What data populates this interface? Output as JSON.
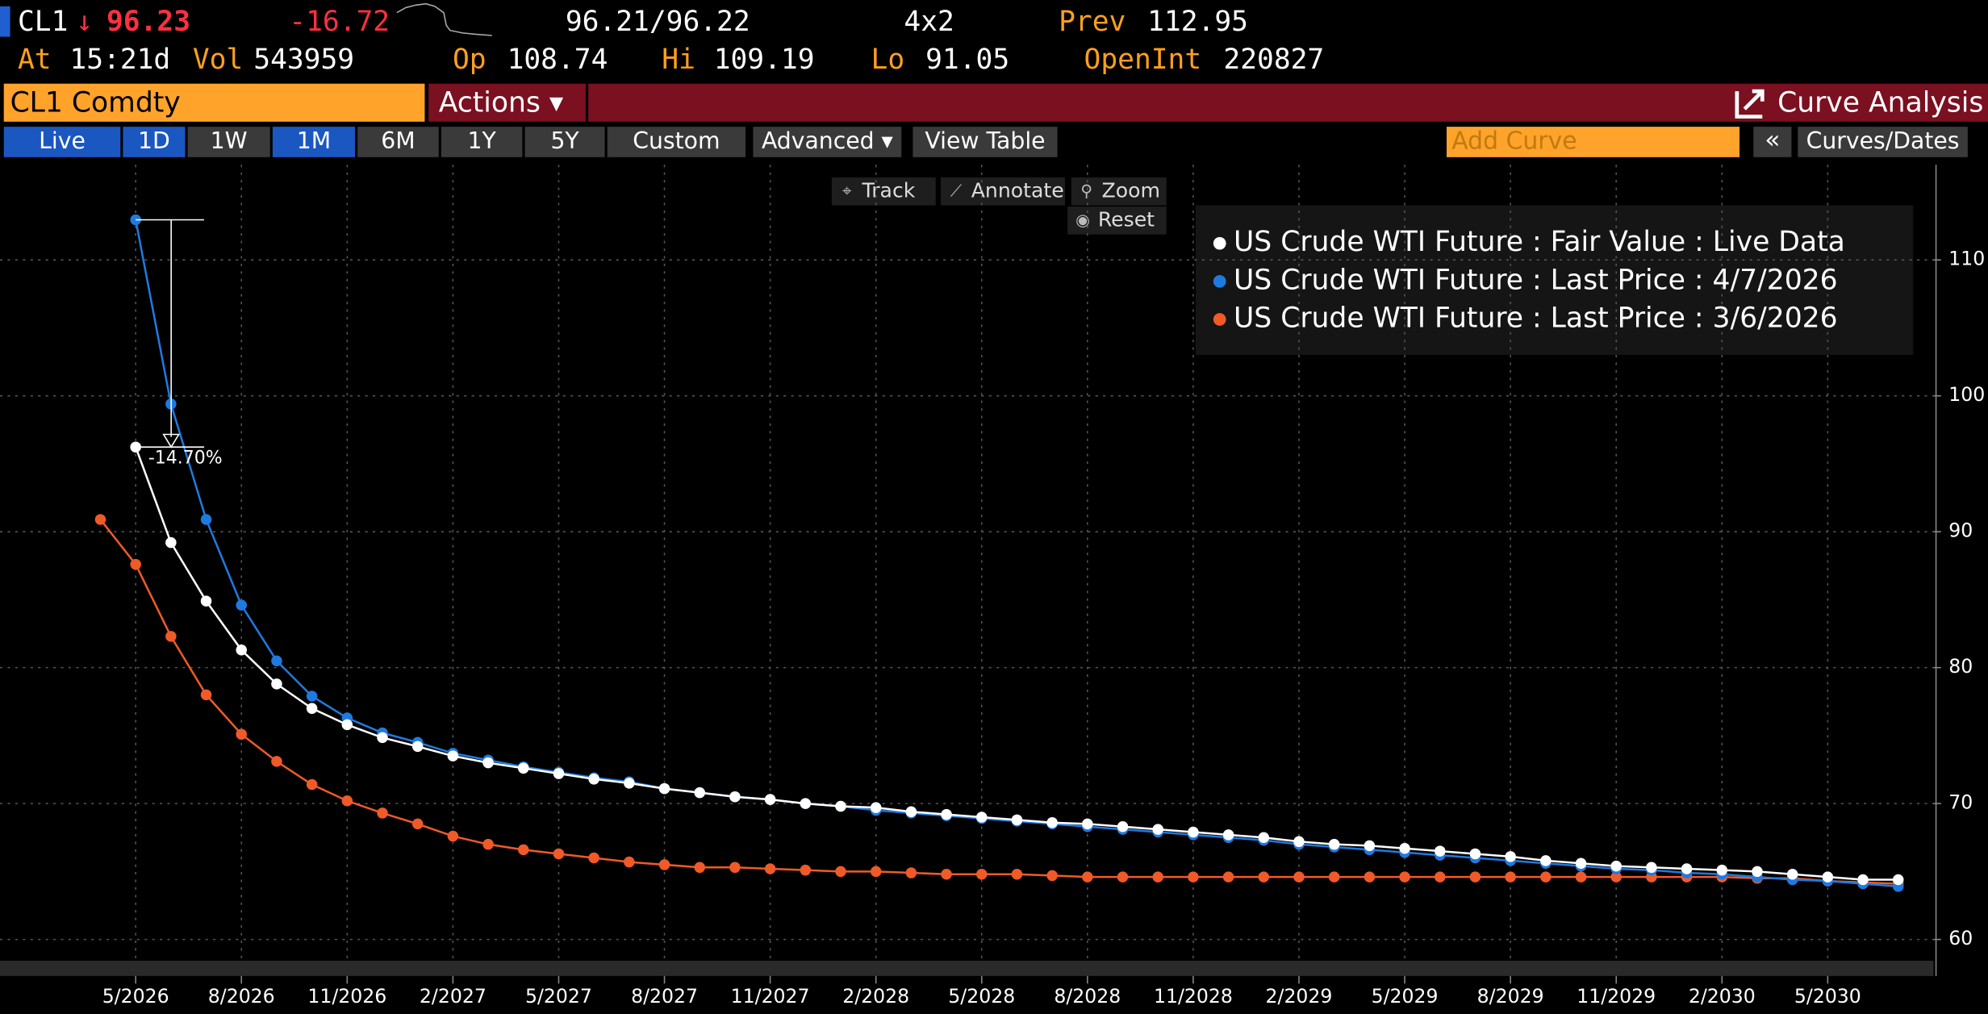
{
  "header": {
    "ticker": "CL1",
    "arrow": "↓",
    "last": "96.23",
    "change": "-16.72",
    "bid_ask": "96.21/96.22",
    "size": "4x2",
    "prev_label": "Prev",
    "prev": "112.95",
    "at_label": "At",
    "time": "15:21d",
    "vol_label": "Vol",
    "vol": "543959",
    "op_label": "Op",
    "op": "108.74",
    "hi_label": "Hi",
    "hi": "109.19",
    "lo_label": "Lo",
    "lo": "91.05",
    "oi_label": "OpenInt",
    "oi": "220827"
  },
  "toolbar": {
    "security": "CL1 Comdty",
    "actions": "Actions ▾",
    "function": "Curve Analysis",
    "buttons": [
      "Live",
      "1D",
      "1W",
      "1M",
      "6M",
      "1Y",
      "5Y",
      "Custom",
      "Advanced ▾",
      "View Table"
    ],
    "add_curve": "Add Curve",
    "collapse": "«",
    "curves_dates": "Curves/Dates"
  },
  "tools": [
    "Track",
    "Annotate",
    "Zoom",
    "Reset"
  ],
  "chart_data": {
    "type": "line",
    "annotation": "-14.70%",
    "xlim": [
      "2/2026",
      "8/2030"
    ],
    "xticks": [
      "5/2026",
      "8/2026",
      "11/2026",
      "2/2027",
      "5/2027",
      "8/2027",
      "11/2027",
      "2/2028",
      "5/2028",
      "8/2028",
      "11/2028",
      "2/2029",
      "5/2029",
      "8/2029",
      "11/2029",
      "2/2030",
      "5/2030"
    ],
    "ylim": [
      57.5,
      117
    ],
    "yticks": [
      60,
      70,
      80,
      90,
      100,
      110
    ],
    "grid": true,
    "series": [
      {
        "name": "US Crude WTI Future : Fair Value : Live Data",
        "color": "#ffffff",
        "x": [
          "5/2026",
          "6/2026",
          "7/2026",
          "8/2026",
          "9/2026",
          "10/2026",
          "11/2026",
          "12/2026",
          "1/2027",
          "2/2027",
          "3/2027",
          "4/2027",
          "5/2027",
          "6/2027",
          "7/2027",
          "8/2027",
          "9/2027",
          "10/2027",
          "11/2027",
          "12/2027",
          "1/2028",
          "2/2028",
          "3/2028",
          "4/2028",
          "5/2028",
          "6/2028",
          "7/2028",
          "8/2028",
          "9/2028",
          "10/2028",
          "11/2028",
          "12/2028",
          "1/2029",
          "2/2029",
          "3/2029",
          "4/2029",
          "5/2029",
          "6/2029",
          "7/2029",
          "8/2029",
          "9/2029",
          "10/2029",
          "11/2029",
          "12/2029",
          "1/2030",
          "2/2030",
          "3/2030",
          "4/2030",
          "5/2030",
          "6/2030",
          "7/2030"
        ],
        "values": [
          96.23,
          89.2,
          84.9,
          81.3,
          78.8,
          77.0,
          75.8,
          74.85,
          74.2,
          73.5,
          73.0,
          72.6,
          72.2,
          71.8,
          71.5,
          71.1,
          70.8,
          70.5,
          70.3,
          70.0,
          69.8,
          69.7,
          69.4,
          69.2,
          69.0,
          68.8,
          68.6,
          68.5,
          68.3,
          68.1,
          67.9,
          67.7,
          67.5,
          67.2,
          67.0,
          66.9,
          66.7,
          66.5,
          66.3,
          66.1,
          65.8,
          65.6,
          65.4,
          65.3,
          65.2,
          65.1,
          65.0,
          64.8,
          64.6,
          64.4,
          64.4
        ]
      },
      {
        "name": "US Crude WTI Future : Last Price : 4/7/2026",
        "color": "#1f7ae0",
        "x": [
          "5/2026",
          "6/2026",
          "7/2026",
          "8/2026",
          "9/2026",
          "10/2026",
          "11/2026",
          "12/2026",
          "1/2027",
          "2/2027",
          "3/2027",
          "4/2027",
          "5/2027",
          "6/2027",
          "7/2027",
          "8/2027",
          "9/2027",
          "10/2027",
          "11/2027",
          "12/2027",
          "1/2028",
          "2/2028",
          "3/2028",
          "4/2028",
          "5/2028",
          "6/2028",
          "7/2028",
          "8/2028",
          "9/2028",
          "10/2028",
          "11/2028",
          "12/2028",
          "1/2029",
          "2/2029",
          "3/2029",
          "4/2029",
          "5/2029",
          "6/2029",
          "7/2029",
          "8/2029",
          "9/2029",
          "10/2029",
          "11/2029",
          "12/2029",
          "1/2030",
          "2/2030",
          "3/2030",
          "4/2030",
          "5/2030",
          "6/2030",
          "7/2030"
        ],
        "values": [
          112.95,
          99.4,
          90.9,
          84.6,
          80.5,
          77.9,
          76.3,
          75.2,
          74.5,
          73.7,
          73.2,
          72.7,
          72.3,
          71.9,
          71.6,
          71.1,
          70.8,
          70.5,
          70.3,
          70.0,
          69.8,
          69.5,
          69.3,
          69.1,
          68.9,
          68.7,
          68.5,
          68.3,
          68.1,
          67.9,
          67.7,
          67.5,
          67.3,
          67.0,
          66.8,
          66.6,
          66.4,
          66.2,
          66.0,
          65.8,
          65.6,
          65.4,
          65.2,
          65.1,
          64.9,
          64.8,
          64.6,
          64.4,
          64.3,
          64.1,
          63.9
        ]
      },
      {
        "name": "US Crude WTI Future : Last Price : 3/6/2026",
        "color": "#f05a28",
        "x": [
          "4/2026",
          "5/2026",
          "6/2026",
          "7/2026",
          "8/2026",
          "9/2026",
          "10/2026",
          "11/2026",
          "12/2026",
          "1/2027",
          "2/2027",
          "3/2027",
          "4/2027",
          "5/2027",
          "6/2027",
          "7/2027",
          "8/2027",
          "9/2027",
          "10/2027",
          "11/2027",
          "12/2027",
          "1/2028",
          "2/2028",
          "3/2028",
          "4/2028",
          "5/2028",
          "6/2028",
          "7/2028",
          "8/2028",
          "9/2028",
          "10/2028",
          "11/2028",
          "12/2028",
          "1/2029",
          "2/2029",
          "3/2029",
          "4/2029",
          "5/2029",
          "6/2029",
          "7/2029",
          "8/2029",
          "9/2029",
          "10/2029",
          "11/2029",
          "12/2029",
          "1/2030",
          "2/2030",
          "3/2030",
          "4/2030",
          "5/2030",
          "6/2030",
          "7/2030"
        ],
        "values": [
          90.9,
          87.6,
          82.3,
          78.0,
          75.1,
          73.1,
          71.4,
          70.2,
          69.3,
          68.5,
          67.6,
          67.0,
          66.6,
          66.3,
          66.0,
          65.7,
          65.5,
          65.3,
          65.3,
          65.2,
          65.1,
          65.0,
          65.0,
          64.9,
          64.8,
          64.8,
          64.8,
          64.7,
          64.6,
          64.6,
          64.6,
          64.6,
          64.6,
          64.6,
          64.6,
          64.6,
          64.6,
          64.6,
          64.6,
          64.6,
          64.6,
          64.6,
          64.6,
          64.6,
          64.6,
          64.6,
          64.6,
          64.5,
          64.5,
          64.3,
          64.2,
          64.1
        ]
      }
    ]
  }
}
